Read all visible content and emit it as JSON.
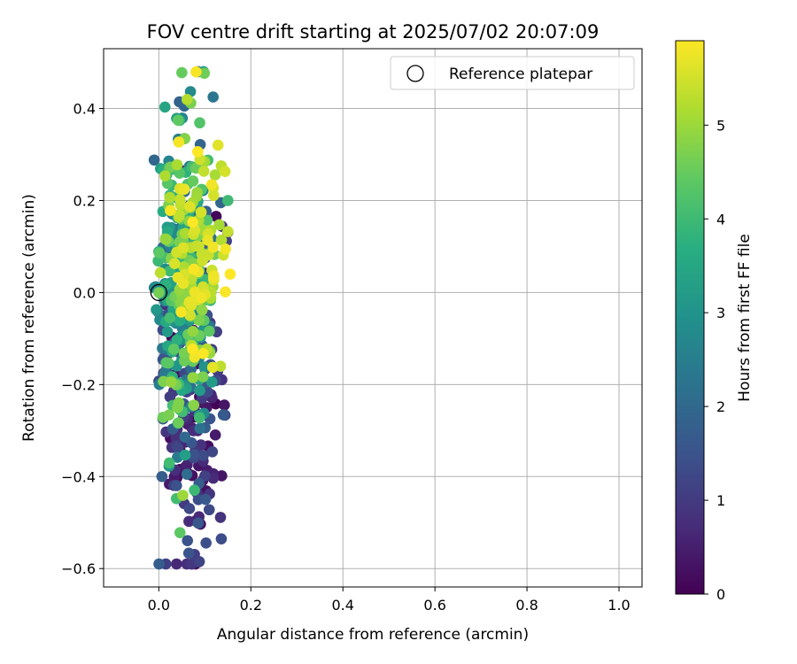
{
  "chart_data": {
    "type": "scatter",
    "title": "FOV centre drift starting at 2025/07/02 20:07:09",
    "xlabel": "Angular distance from reference (arcmin)",
    "ylabel": "Rotation from reference (arcmin)",
    "xlim": [
      -0.12,
      1.05
    ],
    "ylim": [
      -0.64,
      0.53
    ],
    "xticks": [
      0.0,
      0.2,
      0.4,
      0.6,
      0.8,
      1.0
    ],
    "xtick_labels": [
      "0.0",
      "0.2",
      "0.4",
      "0.6",
      "0.8",
      "1.0"
    ],
    "yticks": [
      0.4,
      0.2,
      0.0,
      -0.2,
      -0.4,
      -0.6
    ],
    "ytick_labels": [
      "0.4",
      "0.2",
      "0.0",
      "−0.2",
      "−0.4",
      "−0.6"
    ],
    "grid": true,
    "legend": {
      "position": "top-right",
      "entries": [
        "Reference platepar"
      ]
    },
    "reference_point": {
      "x": 0.0,
      "y": 0.0,
      "label": "Reference platepar"
    },
    "colorbar": {
      "label": "Hours from first FF file",
      "colormap": "viridis",
      "range": [
        0,
        5.9
      ],
      "ticks": [
        0,
        1,
        2,
        3,
        4,
        5
      ],
      "tick_labels": [
        "0",
        "1",
        "2",
        "3",
        "4",
        "5"
      ]
    },
    "generated_points": {
      "count": 620,
      "hours_range": [
        0,
        5.9
      ],
      "x_range": [
        -0.01,
        0.15
      ],
      "y_range": [
        -0.59,
        0.48
      ],
      "note_points": [
        {
          "x": 0.05,
          "y": 0.478,
          "h": 4.5
        },
        {
          "x": 0.088,
          "y": -0.585,
          "h": 1.2
        },
        {
          "x": 0.046,
          "y": -0.522,
          "h": 4.4
        },
        {
          "x": 0.155,
          "y": 0.04,
          "h": 5.9
        },
        {
          "x": 0.15,
          "y": 0.2,
          "h": 4.0
        },
        {
          "x": 0.118,
          "y": 0.425,
          "h": 2.3
        }
      ]
    }
  }
}
